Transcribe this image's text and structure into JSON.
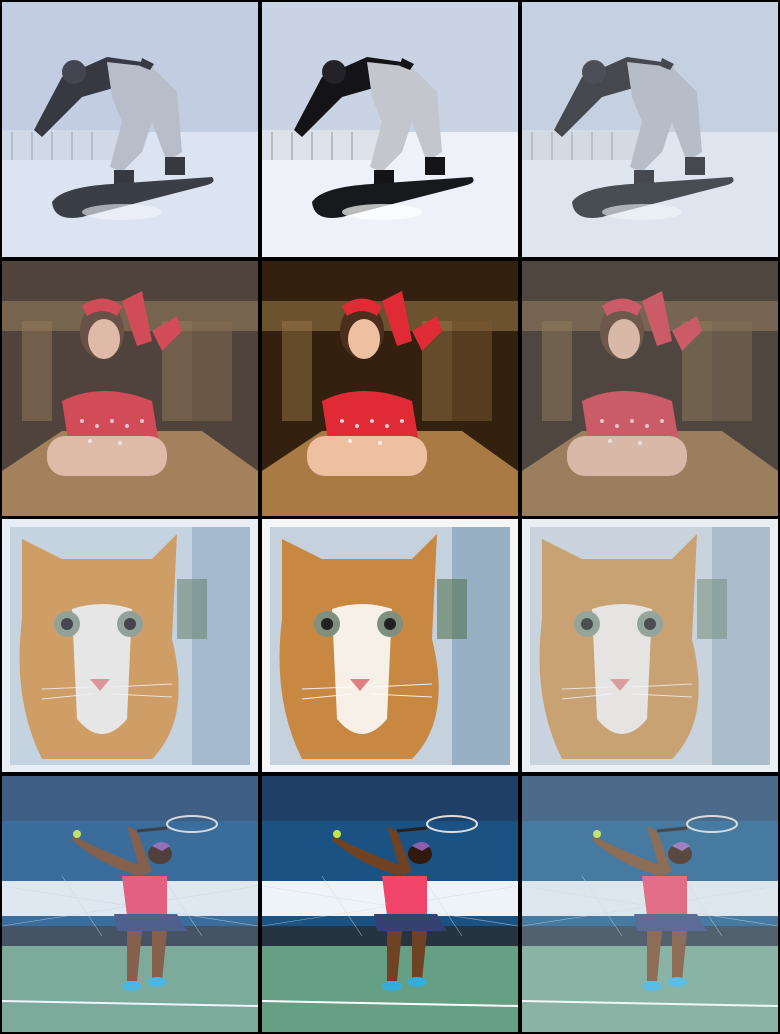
{
  "grid": {
    "rows": [
      {
        "subject": "snowboarder"
      },
      {
        "subject": "pinup-woman"
      },
      {
        "subject": "kitten"
      },
      {
        "subject": "tennis-player"
      }
    ],
    "columns": 3
  },
  "colors": {
    "snow_sky": "#c9d3e3",
    "snow_ground": "#e8edf5",
    "jacket_black": "#1a1a1e",
    "pants_gray": "#b9bcc2",
    "board_black": "#1e2024",
    "wood_dark": "#3a2616",
    "wood_light": "#8a6a3e",
    "dress_red": "#d8303a",
    "skin": "#e9b79a",
    "cat_orange": "#d4954a",
    "cat_white": "#f2ede6",
    "window_blue": "#9fb6c8",
    "court_blue": "#1f5a8a",
    "court_green": "#6fa58a",
    "shirt_pink": "#ee4a6a"
  }
}
